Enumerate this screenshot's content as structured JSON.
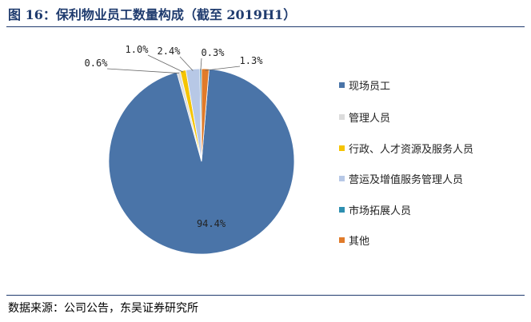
{
  "title": "图 16：保利物业员工数量构成（截至 2019H1）",
  "source": "数据来源：公司公告，东吴证券研究所",
  "chart_data": {
    "type": "pie",
    "title": "",
    "slices": [
      {
        "label": "现场员工",
        "value": 94.4,
        "display": "94.4%",
        "color": "#4a74a8"
      },
      {
        "label": "管理人员",
        "value": 0.6,
        "display": "0.6%",
        "color": "#dcdcdc"
      },
      {
        "label": "行政、人才资源及服务人员",
        "value": 1.0,
        "display": "1.0%",
        "color": "#f5c400"
      },
      {
        "label": "营运及增值服务管理人员",
        "value": 2.4,
        "display": "2.4%",
        "color": "#b7c8e6"
      },
      {
        "label": "市场拓展人员",
        "value": 0.3,
        "display": "0.3%",
        "color": "#2e8fb0"
      },
      {
        "label": "其他",
        "value": 1.3,
        "display": "1.3%",
        "color": "#e07b2a"
      }
    ],
    "legend": "right"
  }
}
